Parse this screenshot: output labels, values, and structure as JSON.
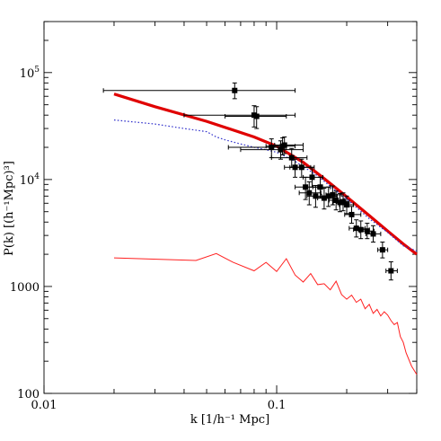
{
  "chart_data": {
    "type": "scatter",
    "xlabel": "k [1/h⁻¹ Mpc]",
    "ylabel": "P(k) [(h⁻¹Mpc)³]",
    "xscale": "log",
    "yscale": "log",
    "xlim": [
      0.01,
      0.4
    ],
    "ylim": [
      100,
      300000
    ],
    "x_ticks": [
      {
        "value": 0.01,
        "label": "0.01"
      },
      {
        "value": 0.1,
        "label": "0.1"
      }
    ],
    "y_ticks": [
      {
        "value": 100,
        "label": "100"
      },
      {
        "value": 1000,
        "label": "1000"
      },
      {
        "value": 10000,
        "label": "10",
        "exp": "4"
      },
      {
        "value": 100000,
        "label": "10",
        "exp": "5"
      }
    ],
    "grid": false,
    "colors": {
      "thick_line": "#e00000",
      "dotted_line": "#3333cc",
      "thin_line": "#ff2020",
      "points": "#000000"
    },
    "series": [
      {
        "style": "thick-solid",
        "x": [
          0.02,
          0.03,
          0.05,
          0.08,
          0.1,
          0.13,
          0.16,
          0.2,
          0.25,
          0.3,
          0.35,
          0.4
        ],
        "y": [
          63000,
          48000,
          35000,
          25000,
          20500,
          14500,
          10200,
          6900,
          4600,
          3300,
          2500,
          2000
        ]
      },
      {
        "style": "dotted",
        "x": [
          0.02,
          0.03,
          0.04,
          0.05,
          0.055,
          0.06,
          0.07,
          0.08,
          0.09,
          0.1,
          0.12,
          0.15,
          0.18,
          0.2,
          0.25,
          0.3,
          0.35,
          0.4
        ],
        "y": [
          36000,
          33000,
          30000,
          28000,
          25000,
          23500,
          21500,
          20000,
          19000,
          18000,
          14800,
          10800,
          7800,
          6600,
          4300,
          3200,
          2400,
          2150
        ]
      },
      {
        "style": "thin-solid",
        "x": [
          0.02,
          0.045,
          0.055,
          0.065,
          0.08,
          0.09,
          0.1,
          0.11,
          0.12,
          0.13,
          0.14,
          0.15,
          0.16,
          0.17,
          0.18,
          0.19,
          0.2,
          0.21,
          0.22,
          0.23,
          0.24,
          0.25,
          0.26,
          0.27,
          0.28,
          0.29,
          0.3,
          0.31,
          0.32,
          0.33,
          0.34,
          0.35,
          0.36,
          0.38,
          0.4
        ],
        "y": [
          1850,
          1750,
          2030,
          1680,
          1400,
          1680,
          1380,
          1820,
          1280,
          1100,
          1320,
          1040,
          1060,
          930,
          1120,
          840,
          760,
          830,
          710,
          760,
          620,
          680,
          560,
          610,
          530,
          580,
          540,
          480,
          440,
          460,
          340,
          300,
          240,
          180,
          150
        ]
      },
      {
        "style": "points",
        "x": [
          0.066,
          0.08,
          0.082,
          0.095,
          0.104,
          0.106,
          0.108,
          0.116,
          0.12,
          0.128,
          0.133,
          0.138,
          0.142,
          0.147,
          0.154,
          0.16,
          0.167,
          0.174,
          0.18,
          0.187,
          0.193,
          0.2,
          0.21,
          0.22,
          0.23,
          0.245,
          0.26,
          0.285,
          0.31
        ],
        "y": [
          68000,
          40000,
          39000,
          20000,
          19000,
          20500,
          21000,
          16000,
          13000,
          13000,
          8500,
          7500,
          10500,
          7000,
          8500,
          6700,
          7000,
          7200,
          6400,
          6100,
          6200,
          5800,
          4700,
          3500,
          3400,
          3300,
          3100,
          2200,
          1400
        ],
        "xerr_low": [
          0.018,
          0.04,
          0.06,
          0.062,
          0.07,
          0.09,
          0.098,
          0.095,
          0.108,
          0.114,
          0.12,
          0.125,
          0.13,
          0.135,
          0.143,
          0.15,
          0.156,
          0.163,
          0.168,
          0.175,
          0.181,
          0.186,
          0.196,
          0.205,
          0.214,
          0.228,
          0.242,
          0.272,
          0.295
        ],
        "xerr_high": [
          0.12,
          0.12,
          0.11,
          0.11,
          0.13,
          0.12,
          0.13,
          0.135,
          0.14,
          0.145,
          0.15,
          0.155,
          0.158,
          0.165,
          0.17,
          0.175,
          0.182,
          0.19,
          0.195,
          0.2,
          0.205,
          0.214,
          0.23,
          0.24,
          0.25,
          0.262,
          0.28,
          0.3,
          0.33
        ],
        "yerr_low": [
          57000,
          31000,
          30000,
          16000,
          15500,
          17000,
          17500,
          13000,
          10500,
          10500,
          6500,
          5800,
          8500,
          5500,
          6800,
          5300,
          5600,
          5800,
          5200,
          5000,
          5100,
          4800,
          3900,
          2900,
          2800,
          2800,
          2600,
          1850,
          1150
        ],
        "yerr_high": [
          80000,
          49000,
          48000,
          24000,
          23000,
          24500,
          25000,
          19500,
          15500,
          15500,
          10500,
          9500,
          13000,
          8800,
          10500,
          8300,
          8500,
          8700,
          7800,
          7400,
          7500,
          7000,
          5600,
          4200,
          4100,
          3900,
          3700,
          2600,
          1700
        ]
      }
    ]
  }
}
